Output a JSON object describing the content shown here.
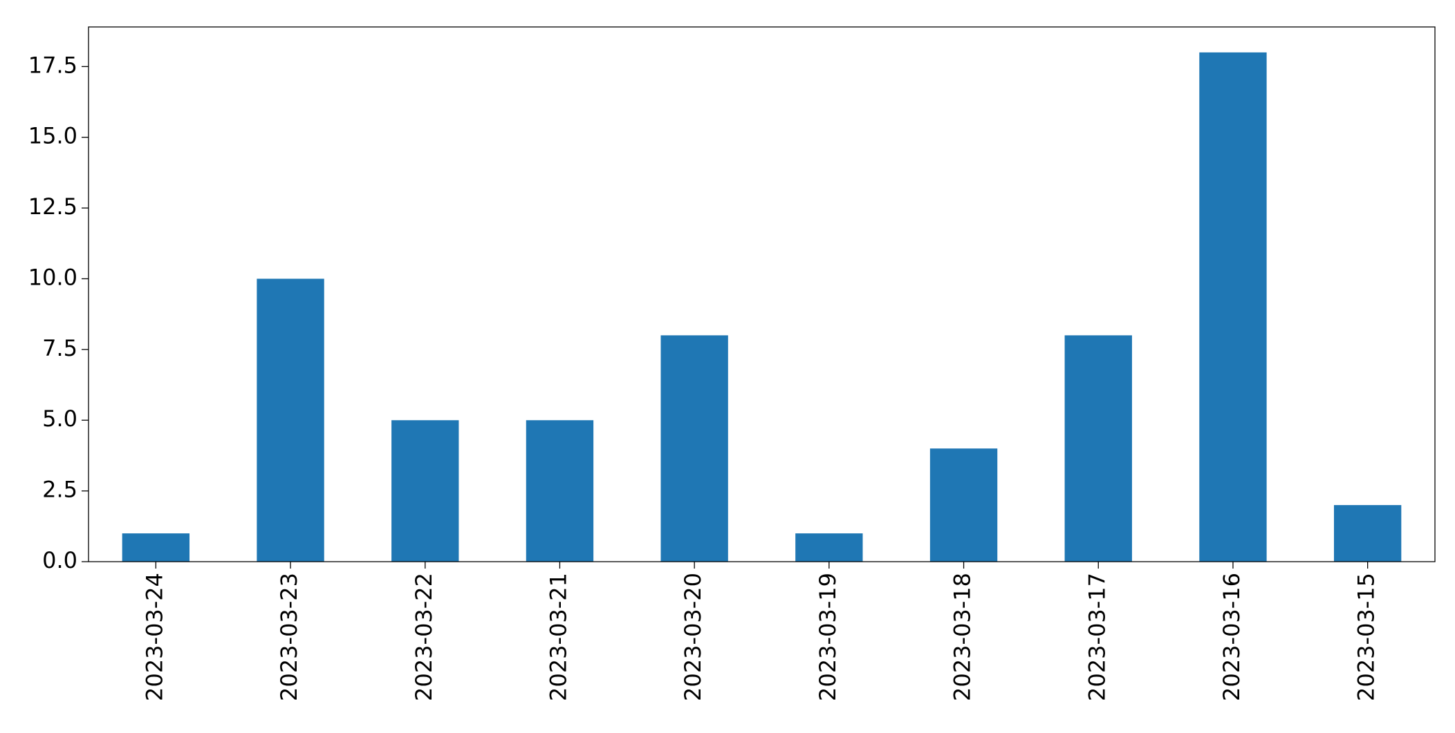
{
  "chart_data": {
    "type": "bar",
    "categories": [
      "2023-03-24",
      "2023-03-23",
      "2023-03-22",
      "2023-03-21",
      "2023-03-20",
      "2023-03-19",
      "2023-03-18",
      "2023-03-17",
      "2023-03-16",
      "2023-03-15"
    ],
    "values": [
      1,
      10,
      5,
      5,
      8,
      1,
      4,
      8,
      18,
      2
    ],
    "color": "#1f77b4",
    "ylim": [
      0,
      18.9
    ],
    "yticks": [
      {
        "value": 0,
        "label": "0.0"
      },
      2.5,
      {
        "value": 5,
        "label": "5.0"
      },
      7.5,
      {
        "value": 10,
        "label": "10.0"
      },
      12.5,
      {
        "value": 15,
        "label": "15.0"
      },
      17.5
    ],
    "grid": false
  }
}
